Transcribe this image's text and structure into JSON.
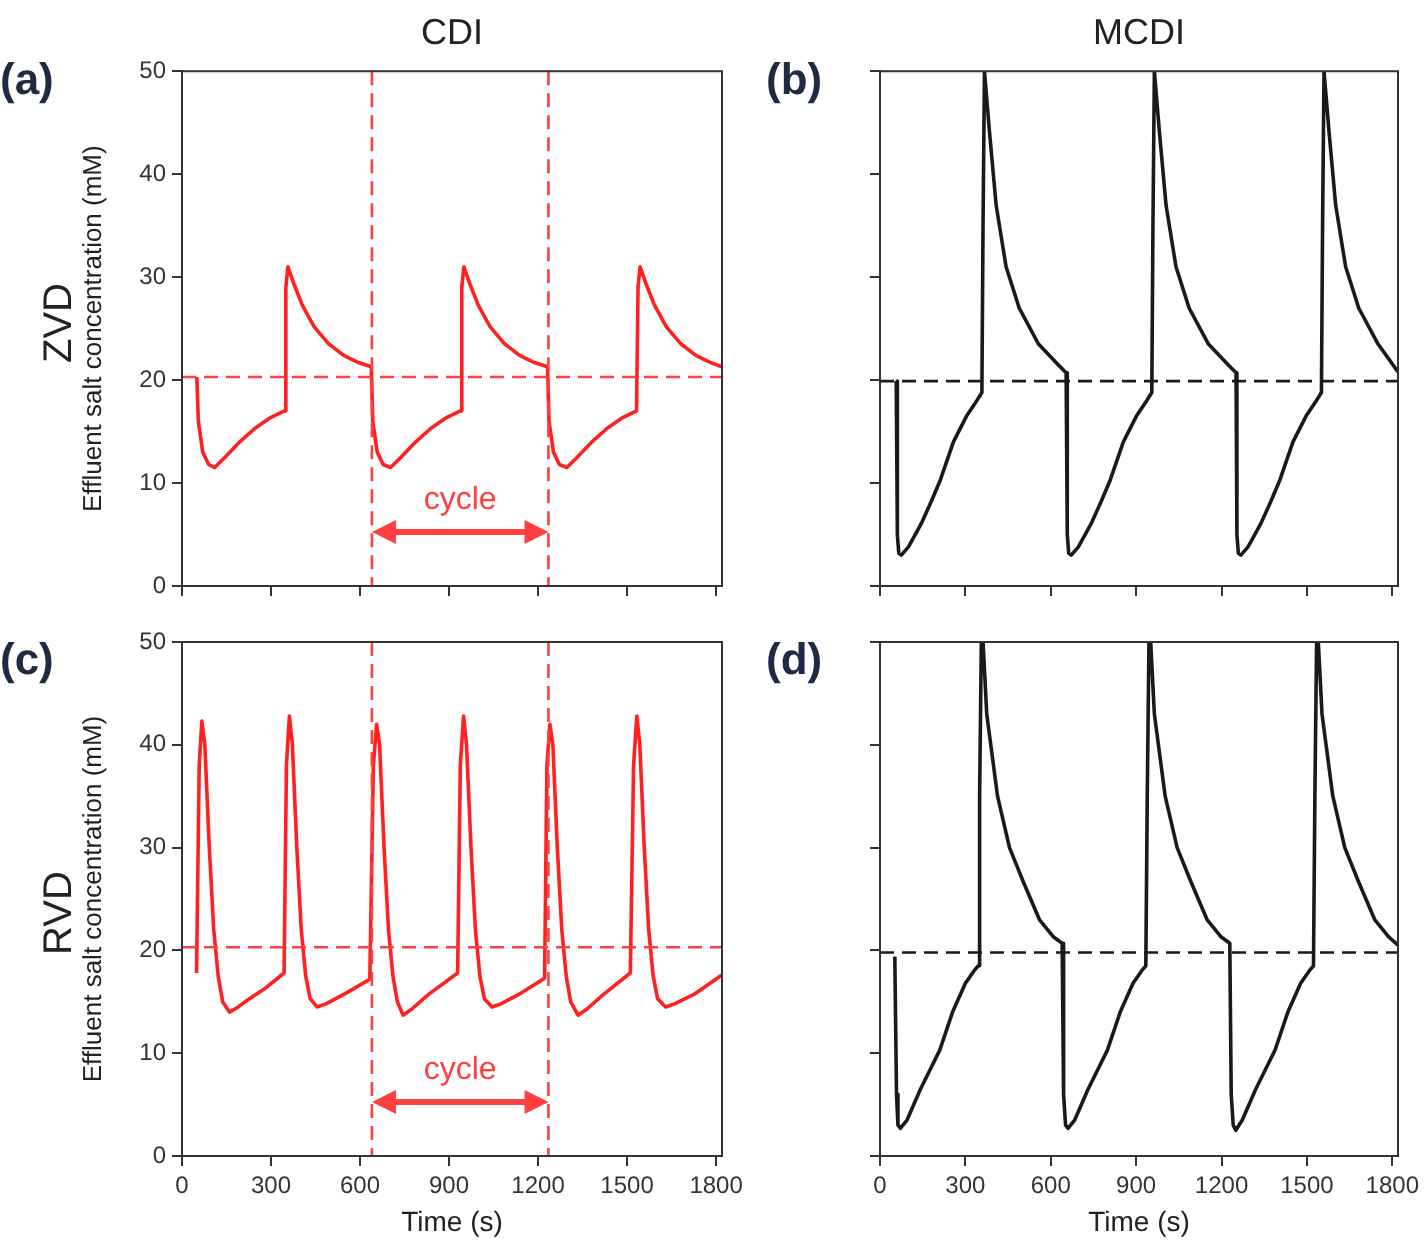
{
  "chart_data": [
    {
      "type": "line",
      "title": "CDI",
      "ylabel": "Effluent salt concentration (mM)",
      "annotations": [
        "(a)",
        "ZVD",
        "cycle"
      ],
      "series": [
        {
          "color": "#ff2020",
          "x": [
            50,
            55,
            70,
            90,
            110,
            145,
            195,
            245,
            295,
            345,
            350,
            357,
            375,
            405,
            445,
            495,
            545,
            595,
            638,
            643,
            658,
            678,
            703,
            738,
            788,
            838,
            888,
            938,
            943,
            950,
            968,
            998,
            1038,
            1088,
            1138,
            1188,
            1232,
            1237,
            1252,
            1272,
            1297,
            1332,
            1382,
            1432,
            1482,
            1532,
            1537,
            1544,
            1562,
            1592,
            1632,
            1682,
            1732,
            1782,
            1820
          ],
          "values": [
            20.3,
            16,
            13,
            11.8,
            11.5,
            12.5,
            14,
            15.3,
            16.3,
            17,
            29,
            31,
            29.5,
            27.3,
            25.2,
            23.5,
            22.4,
            21.7,
            21.3,
            16,
            13,
            11.8,
            11.5,
            12.5,
            14,
            15.3,
            16.3,
            17,
            29,
            31,
            29.5,
            27.3,
            25.2,
            23.5,
            22.4,
            21.7,
            21.3,
            16,
            13,
            11.8,
            11.5,
            12.5,
            14,
            15.3,
            16.3,
            17,
            29,
            31,
            29.5,
            27.3,
            25.2,
            23.5,
            22.4,
            21.7,
            21.3
          ]
        }
      ],
      "ref_lines": [
        {
          "axis": "y",
          "value": 20.3,
          "color": "#ff4040",
          "line_style": "dashed"
        },
        {
          "axis": "x",
          "value": 640,
          "color": "#ff4040",
          "line_style": "dashed"
        },
        {
          "axis": "x",
          "value": 1235,
          "color": "#ff4040",
          "line_style": "dashed"
        }
      ],
      "xlim": [
        0,
        1820
      ],
      "xticks": [
        0,
        300,
        600,
        900,
        1200,
        1500,
        1800
      ],
      "ylim": [
        0,
        50
      ],
      "yticks": [
        0,
        10,
        20,
        30,
        40,
        50
      ],
      "tick_labels": "y",
      "grid": false,
      "legend": false,
      "marker": "none",
      "line_style": "solid"
    },
    {
      "type": "line",
      "title": "MCDI",
      "annotations": [
        "(b)"
      ],
      "series": [
        {
          "color": "#1a1a1a",
          "x": [
            57,
            61,
            66,
            75,
            100,
            144,
            180,
            212,
            258,
            304,
            340,
            358,
            362,
            367,
            372,
            385,
            408,
            443,
            489,
            557,
            626,
            654,
            658,
            663,
            672,
            697,
            741,
            777,
            809,
            855,
            901,
            937,
            955,
            959,
            964,
            969,
            982,
            1005,
            1040,
            1086,
            1154,
            1223,
            1251,
            1254,
            1259,
            1268,
            1293,
            1337,
            1373,
            1405,
            1451,
            1497,
            1533,
            1551,
            1555,
            1560,
            1565,
            1578,
            1601,
            1636,
            1682,
            1750,
            1820
          ],
          "values": [
            19.9,
            5,
            3.2,
            3,
            3.8,
            6,
            8.2,
            10.3,
            14,
            16.5,
            18,
            18.8,
            35,
            50,
            50,
            44,
            37,
            31,
            27,
            23.5,
            21.5,
            20.7,
            5,
            3.2,
            3,
            3.8,
            6,
            8.2,
            10.3,
            14,
            16.5,
            18,
            18.8,
            35,
            50,
            50,
            44,
            37,
            31,
            27,
            23.5,
            21.5,
            20.7,
            5,
            3.2,
            3,
            3.8,
            6,
            8.2,
            10.3,
            14,
            16.5,
            18,
            18.8,
            35,
            50,
            50,
            44,
            37,
            31,
            27,
            23.5,
            20.8
          ]
        }
      ],
      "ref_lines": [
        {
          "axis": "y",
          "value": 19.9,
          "color": "#1a1a1a",
          "line_style": "dashed"
        }
      ],
      "xlim": [
        0,
        1820
      ],
      "xticks": [
        0,
        300,
        600,
        900,
        1200,
        1500,
        1800
      ],
      "ylim": [
        0,
        50
      ],
      "yticks": [
        0,
        10,
        20,
        30,
        40,
        50
      ],
      "tick_labels": false,
      "grid": false,
      "legend": false,
      "marker": "none",
      "line_style": "solid"
    },
    {
      "type": "line",
      "xlabel": "Time (s)",
      "ylabel": "Effluent salt concentration (mM)",
      "annotations": [
        "(c)",
        "RVD",
        "cycle"
      ],
      "series": [
        {
          "color": "#ff2020",
          "x": [
            49,
            58,
            67,
            77,
            92,
            107,
            122,
            137,
            160,
            190,
            222,
            280,
            344,
            352,
            362,
            372,
            387,
            402,
            417,
            432,
            455,
            485,
            550,
            633,
            645,
            656,
            666,
            681,
            696,
            711,
            726,
            745,
            775,
            830,
            929,
            938,
            949,
            959,
            974,
            989,
            1004,
            1019,
            1045,
            1075,
            1140,
            1222,
            1230,
            1240,
            1250,
            1265,
            1280,
            1295,
            1310,
            1335,
            1365,
            1420,
            1511,
            1522,
            1533,
            1543,
            1558,
            1573,
            1588,
            1603,
            1630,
            1660,
            1730,
            1820
          ],
          "values": [
            17.8,
            38,
            42.3,
            40,
            30,
            22,
            17.5,
            15,
            14,
            14.5,
            15.2,
            16.3,
            17.8,
            38,
            42.8,
            40,
            30,
            22,
            17.5,
            15.3,
            14.5,
            14.8,
            15.8,
            17.2,
            38,
            42,
            40,
            30,
            22,
            17.5,
            15,
            13.7,
            14.3,
            15.7,
            17.8,
            38,
            42.8,
            40,
            30,
            22,
            17.5,
            15.3,
            14.5,
            14.8,
            15.8,
            17.3,
            38,
            42,
            40,
            30,
            22,
            17.5,
            15,
            13.7,
            14.3,
            15.7,
            17.8,
            38,
            42.8,
            40,
            30,
            22,
            17.5,
            15.3,
            14.5,
            14.8,
            15.8,
            17.6
          ]
        }
      ],
      "ref_lines": [
        {
          "axis": "y",
          "value": 20.3,
          "color": "#ff4040",
          "line_style": "dashed"
        },
        {
          "axis": "x",
          "value": 640,
          "color": "#ff4040",
          "line_style": "dashed"
        },
        {
          "axis": "x",
          "value": 1235,
          "color": "#ff4040",
          "line_style": "dashed"
        }
      ],
      "xlim": [
        0,
        1820
      ],
      "xticks": [
        0,
        300,
        600,
        900,
        1200,
        1500,
        1800
      ],
      "ylim": [
        0,
        50
      ],
      "yticks": [
        0,
        10,
        20,
        30,
        40,
        50
      ],
      "grid": false,
      "legend": false,
      "marker": "none",
      "line_style": "solid"
    },
    {
      "type": "line",
      "xlabel": "Time (s)",
      "annotations": [
        "(d)"
      ],
      "series": [
        {
          "color": "#1a1a1a",
          "x": [
            52,
            58,
            63,
            72,
            95,
            142,
            210,
            255,
            300,
            330,
            345,
            350,
            356,
            362,
            375,
            413,
            455,
            503,
            560,
            610,
            640,
            645,
            652,
            661,
            684,
            731,
            799,
            844,
            889,
            919,
            934,
            939,
            945,
            951,
            964,
            1002,
            1044,
            1092,
            1149,
            1199,
            1229,
            1234,
            1241,
            1250,
            1273,
            1320,
            1388,
            1433,
            1478,
            1508,
            1523,
            1528,
            1534,
            1540,
            1553,
            1591,
            1633,
            1681,
            1738,
            1788,
            1820
          ],
          "values": [
            19.4,
            6,
            3,
            2.7,
            3.5,
            6.5,
            10.3,
            14,
            16.8,
            18,
            18.5,
            35,
            50,
            50,
            43,
            35,
            30,
            26.7,
            23,
            21.3,
            20.7,
            6,
            3,
            2.7,
            3.5,
            6.5,
            10.3,
            14,
            16.8,
            18,
            18.5,
            35,
            50,
            50,
            43,
            35,
            30,
            26.7,
            23,
            21.3,
            20.7,
            6,
            3,
            2.5,
            3.5,
            6.5,
            10.3,
            14,
            16.8,
            18,
            18.5,
            35,
            50,
            50,
            43,
            35,
            30,
            26.7,
            23,
            21.3,
            20.5
          ]
        }
      ],
      "ref_lines": [
        {
          "axis": "y",
          "value": 19.8,
          "color": "#1a1a1a",
          "line_style": "dashed"
        }
      ],
      "xlim": [
        0,
        1820
      ],
      "xticks": [
        0,
        300,
        600,
        900,
        1200,
        1500,
        1800
      ],
      "ylim": [
        0,
        50
      ],
      "yticks": [
        0,
        10,
        20,
        30,
        40,
        50
      ],
      "tick_labels": "x",
      "grid": false,
      "legend": false,
      "marker": "none",
      "line_style": "solid"
    }
  ]
}
